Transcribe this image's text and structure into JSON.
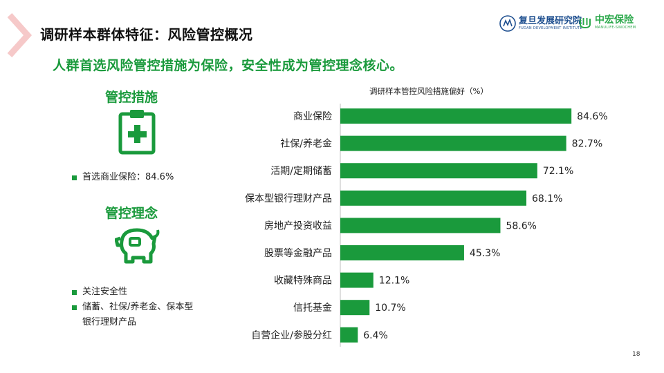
{
  "header": {
    "title": "调研样本群体特征：风险管控概况",
    "subtitle": "人群首选风险管控措施为保险，安全性成为管控理念核心。"
  },
  "logos": {
    "fudan_name": "复旦发展研究院",
    "fudan_en": "FUDAN DEVELOPMENT INSTITUTE",
    "manulife_name": "中宏保险",
    "manulife_en": "MANULIFE-SINOCHEM"
  },
  "left": {
    "measures_heading": "管控措施",
    "measures_bullets": [
      "首选商业保险：84.6%"
    ],
    "concept_heading": "管控理念",
    "concept_bullets": [
      "关注安全性",
      "储蓄、社保/养老金、保本型",
      "银行理财产品"
    ]
  },
  "colors": {
    "accent_green": "#1a9a3c",
    "bar_green": "#1a9a3c",
    "chevron": "#f6c9c9"
  },
  "chart_data": {
    "type": "bar",
    "orientation": "horizontal",
    "title": "调研样本管控风险措施偏好（%）",
    "categories": [
      "商业保险",
      "社保/养老金",
      "活期/定期储蓄",
      "保本型银行理财产品",
      "房地产投资收益",
      "股票等金融产品",
      "收藏特殊商品",
      "信托基金",
      "自营企业/参股分红"
    ],
    "values": [
      84.6,
      82.7,
      72.1,
      68.1,
      58.6,
      45.3,
      12.1,
      10.7,
      6.4
    ],
    "value_labels": [
      "84.6%",
      "82.7%",
      "72.1%",
      "68.1%",
      "58.6%",
      "45.3%",
      "12.1%",
      "10.7%",
      "6.4%"
    ],
    "xlim": [
      0,
      100
    ],
    "grid": false
  },
  "footer": {
    "page_number": "18"
  }
}
